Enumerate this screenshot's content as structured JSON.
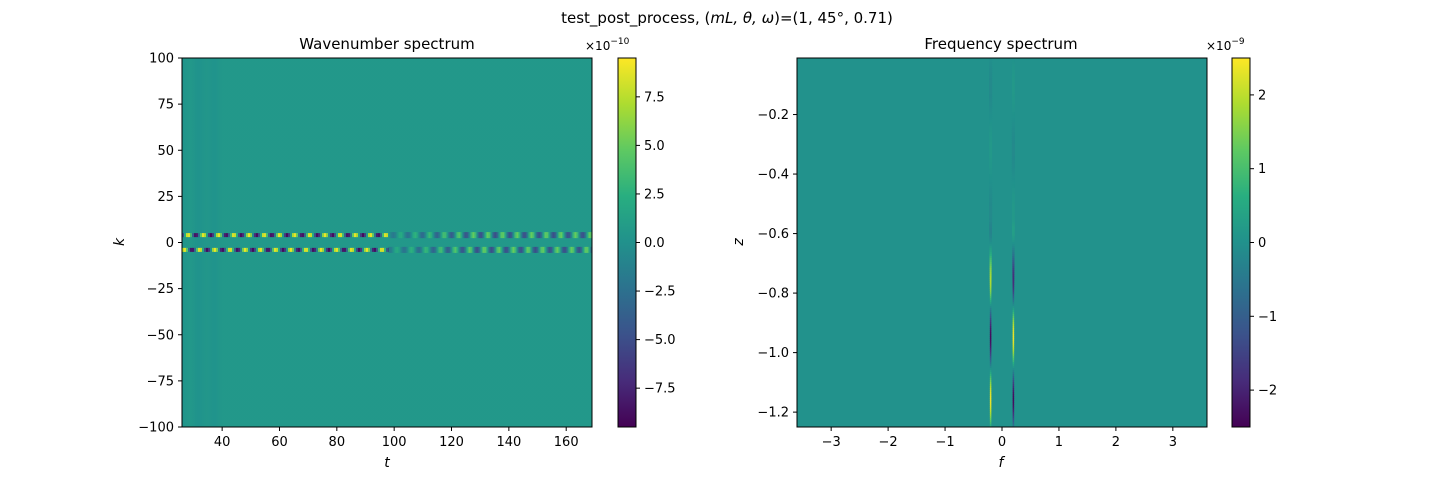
{
  "figure": {
    "suptitle_prefix": "test_post_process, (",
    "suptitle_math": "mL, θ, ω",
    "suptitle_suffix": ")=(1, 45°, 0.71)"
  },
  "colors": {
    "viridis_low": "#440154",
    "viridis_mid": "#21918c",
    "viridis_high": "#fde725",
    "background_value_color": "#23988a",
    "axis": "#000000"
  },
  "chart_data": [
    {
      "type": "heatmap",
      "title": "Wavenumber spectrum",
      "xlabel": "t",
      "ylabel": "k",
      "xlim": [
        26,
        169
      ],
      "ylim": [
        -100,
        100
      ],
      "xticks": [
        40,
        60,
        80,
        100,
        120,
        140,
        160
      ],
      "yticks": [
        -100,
        -75,
        -50,
        -25,
        0,
        25,
        50,
        75,
        100
      ],
      "colormap": "viridis",
      "colorbar": {
        "multiplier": "×10",
        "exponent": "−10",
        "vmin": -9.5,
        "vmax": 9.5,
        "ticks": [
          -7.5,
          -5.0,
          -2.5,
          0.0,
          2.5,
          5.0,
          7.5
        ],
        "ticklabels": [
          "−7.5",
          "−5.0",
          "−2.5",
          "0.0",
          "2.5",
          "5.0",
          "7.5"
        ]
      },
      "features": [
        {
          "description": "oscillating bands",
          "k": 4,
          "t_range": [
            26,
            98
          ],
          "amplitude": 9.0
        },
        {
          "description": "oscillating bands",
          "k": -4,
          "t_range": [
            26,
            98
          ],
          "amplitude": 9.0
        },
        {
          "description": "weaker wave packet",
          "k": 4,
          "t_range": [
            98,
            169
          ],
          "amplitude": 5.0
        },
        {
          "description": "weaker wave packet",
          "k": -4,
          "t_range": [
            98,
            169
          ],
          "amplitude": 5.0
        }
      ]
    },
    {
      "type": "heatmap",
      "title": "Frequency spectrum",
      "xlabel": "f",
      "ylabel": "z",
      "xlim": [
        -3.6,
        3.6
      ],
      "ylim": [
        -1.25,
        -0.01
      ],
      "xticks": [
        -3,
        -2,
        -1,
        0,
        1,
        2,
        3
      ],
      "yticks": [
        -1.2,
        -1.0,
        -0.8,
        -0.6,
        -0.4,
        -0.2
      ],
      "colormap": "viridis",
      "colorbar": {
        "multiplier": "×10",
        "exponent": "−9",
        "vmin": -2.5,
        "vmax": 2.5,
        "ticks": [
          -2,
          -1,
          0,
          1,
          2
        ],
        "ticklabels": [
          "−2",
          "−1",
          "0",
          "1",
          "2"
        ]
      },
      "features": [
        {
          "description": "narrow vertical streak",
          "f": -0.2,
          "z_range": [
            -1.25,
            -0.01
          ]
        },
        {
          "description": "narrow vertical streak",
          "f": 0.2,
          "z_range": [
            -1.25,
            -0.01
          ]
        }
      ]
    }
  ]
}
